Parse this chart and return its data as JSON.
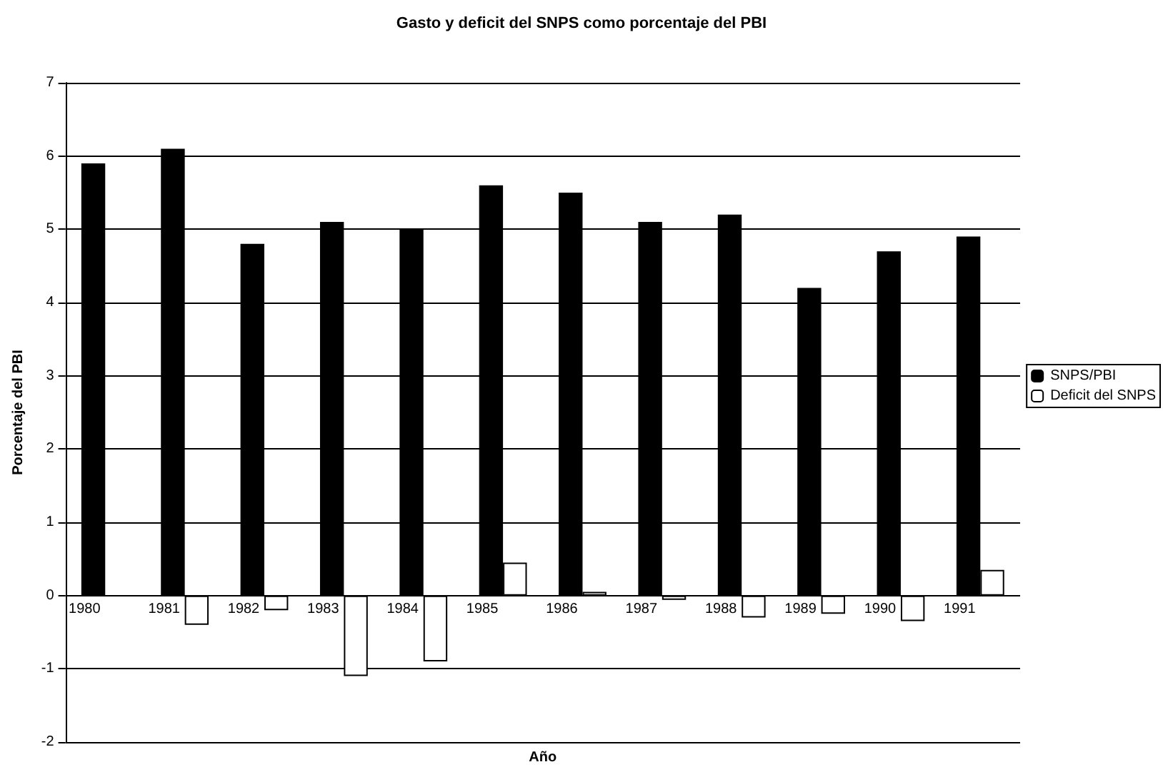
{
  "chart_data": {
    "type": "bar",
    "title": "Gasto y deficit del SNPS como porcentaje del PBI",
    "xlabel": "Año",
    "ylabel": "Porcentaje del PBI",
    "categories": [
      "1980",
      "1981",
      "1982",
      "1983",
      "1984",
      "1985",
      "1986",
      "1987",
      "1988",
      "1989",
      "1990",
      "1991"
    ],
    "series": [
      {
        "name": "SNPS/PBI",
        "color": "#000000",
        "values": [
          5.9,
          6.1,
          4.8,
          5.1,
          5.0,
          5.6,
          5.5,
          5.1,
          5.2,
          4.2,
          4.7,
          4.9
        ]
      },
      {
        "name": "Deficit del SNPS",
        "color": "#ffffff",
        "values": [
          null,
          -0.4,
          -0.2,
          -1.1,
          -0.9,
          0.45,
          0.05,
          -0.06,
          -0.3,
          -0.25,
          -0.35,
          0.35
        ]
      }
    ],
    "ylim": [
      -2,
      7
    ],
    "yticks": [
      -2,
      -1,
      0,
      1,
      2,
      3,
      4,
      5,
      6,
      7
    ],
    "grid": "y",
    "legend": "right"
  }
}
